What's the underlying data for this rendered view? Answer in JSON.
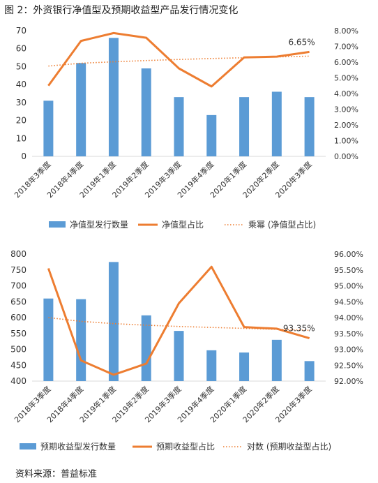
{
  "figure": {
    "title": "图 2：外资银行净值型及预期收益型产品发行情况变化",
    "source": "资料来源：普益标准",
    "colors": {
      "bar": "#5b9bd5",
      "line": "#ed7d31",
      "trend": "#ed7d31",
      "axis": "#d9d9d9",
      "text": "#333333"
    }
  },
  "chart_data": [
    {
      "type": "bar+line",
      "title": "",
      "categories": [
        "2018年3季度",
        "2018年4季度",
        "2019年1季度",
        "2019年2季度",
        "2019年3季度",
        "2019年4季度",
        "2020年1季度",
        "2020年2季度",
        "2020年3季度"
      ],
      "series": [
        {
          "name": "净值型发行数量",
          "type": "bar",
          "axis": "left",
          "values": [
            31,
            52,
            66,
            49,
            33,
            23,
            33,
            36,
            33
          ]
        },
        {
          "name": "净值型占比",
          "type": "line",
          "axis": "right",
          "values": [
            4.5,
            7.35,
            7.85,
            7.55,
            5.6,
            4.45,
            6.3,
            6.35,
            6.65
          ]
        },
        {
          "name": "乘幂 (净值型占比)",
          "type": "trendline",
          "axis": "right",
          "values": [
            5.75,
            5.93,
            6.02,
            6.1,
            6.17,
            6.23,
            6.28,
            6.33,
            6.38
          ]
        }
      ],
      "left_axis": {
        "min": 0,
        "max": 70,
        "step": 10,
        "ticks": [
          "0",
          "10",
          "20",
          "30",
          "40",
          "50",
          "60",
          "70"
        ]
      },
      "right_axis": {
        "min": 0,
        "max": 8,
        "step": 1,
        "ticks": [
          "0.00%",
          "1.00%",
          "2.00%",
          "3.00%",
          "4.00%",
          "5.00%",
          "6.00%",
          "7.00%",
          "8.00%"
        ]
      },
      "annotation": {
        "text": "6.65%",
        "series_index": 1,
        "point_index": 8
      },
      "legend_position": "bottom",
      "grid": false
    },
    {
      "type": "bar+line",
      "title": "",
      "categories": [
        "2018年3季度",
        "2018年4季度",
        "2019年1季度",
        "2019年2季度",
        "2019年3季度",
        "2019年4季度",
        "2020年1季度",
        "2020年2季度",
        "2020年3季度"
      ],
      "series": [
        {
          "name": "预期收益型发行数量",
          "type": "bar",
          "axis": "left",
          "values": [
            660,
            658,
            775,
            607,
            558,
            497,
            490,
            530,
            463
          ]
        },
        {
          "name": "预期收益型占比",
          "type": "line",
          "axis": "right",
          "values": [
            95.55,
            92.65,
            92.2,
            92.55,
            94.45,
            95.6,
            93.7,
            93.65,
            93.35
          ]
        },
        {
          "name": "对数 (预期收益型占比)",
          "type": "trendline",
          "axis": "right",
          "values": [
            94.0,
            93.88,
            93.81,
            93.76,
            93.72,
            93.69,
            93.66,
            93.63,
            93.6
          ]
        }
      ],
      "left_axis": {
        "min": 400,
        "max": 800,
        "step": 50,
        "ticks": [
          "400",
          "450",
          "500",
          "550",
          "600",
          "650",
          "700",
          "750",
          "800"
        ]
      },
      "right_axis": {
        "min": 92,
        "max": 96,
        "step": 0.5,
        "ticks": [
          "92.00%",
          "92.50%",
          "93.00%",
          "93.50%",
          "94.00%",
          "94.50%",
          "95.00%",
          "95.50%",
          "96.00%"
        ]
      },
      "annotation": {
        "text": "93.35%",
        "series_index": 1,
        "point_index": 8
      },
      "legend_position": "bottom",
      "grid": false
    }
  ]
}
